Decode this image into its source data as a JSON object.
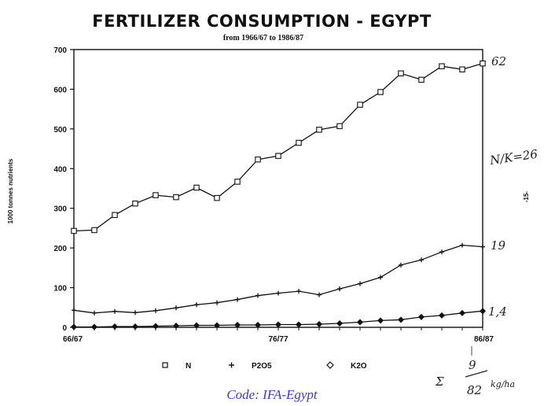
{
  "chart_data": {
    "type": "line",
    "title": "FERTILIZER CONSUMPTION  -  EGYPT",
    "subtitle": "from 1966/67 to 1986/87",
    "ylabel": "1000 tonnes nutrients",
    "xlabel": "",
    "ylim": [
      0,
      700
    ],
    "yticks": [
      "0",
      "100",
      "200",
      "300",
      "400",
      "500",
      "600",
      "700"
    ],
    "x_tick_labels": [
      "66/67",
      "76/77",
      "86/87"
    ],
    "x": [
      "66/67",
      "67/68",
      "68/69",
      "69/70",
      "70/71",
      "71/72",
      "72/73",
      "73/74",
      "74/75",
      "75/76",
      "76/77",
      "77/78",
      "78/79",
      "79/80",
      "80/81",
      "81/82",
      "82/83",
      "83/84",
      "84/85",
      "85/86",
      "86/87"
    ],
    "grid": false,
    "legend_position": "bottom",
    "series": [
      {
        "name": "N",
        "marker": "square",
        "values": [
          243,
          245,
          283,
          312,
          333,
          328,
          352,
          326,
          367,
          423,
          432,
          465,
          498,
          507,
          561,
          593,
          640,
          624,
          658,
          650,
          665
        ]
      },
      {
        "name": "P2O5",
        "marker": "plus",
        "values": [
          43,
          36,
          40,
          37,
          42,
          49,
          57,
          62,
          70,
          80,
          86,
          91,
          82,
          97,
          110,
          126,
          157,
          170,
          190,
          207,
          203
        ]
      },
      {
        "name": "K2O",
        "marker": "diamond",
        "values": [
          1,
          1,
          2,
          2,
          3,
          4,
          5,
          5,
          6,
          6,
          7,
          7,
          8,
          10,
          13,
          17,
          19,
          26,
          30,
          36,
          41
        ]
      }
    ]
  },
  "annotations": {
    "n_end": "62",
    "nk_ratio": "N/K=26",
    "p_end": "19",
    "k_end": "1,4",
    "page_mark": "-15-",
    "sum_marks": [
      "Σ",
      "9",
      "82",
      "kg/ha"
    ],
    "source_caption": "Code: IFA-Egypt"
  }
}
